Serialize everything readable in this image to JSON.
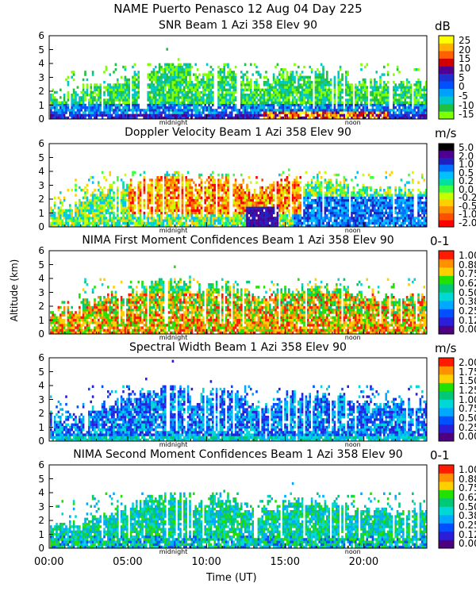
{
  "figure": {
    "title": "NAME Puerto Penasco  12 Aug 04 Day 225",
    "ylabel": "Altitude (km)",
    "xlabel": "Time (UT)",
    "x_ticks": [
      "00:00",
      "05:00",
      "10:00",
      "15:00",
      "20:00"
    ],
    "y_ticks": [
      "0",
      "1",
      "2",
      "3",
      "4",
      "5",
      "6"
    ],
    "markers": [
      "midnight",
      "noon"
    ]
  },
  "colors": {
    "seq10": [
      "#4d0080",
      "#2a1ed8",
      "#0050ff",
      "#00a8ff",
      "#00d8d8",
      "#00c878",
      "#22e000",
      "#ffd000",
      "#ff9000",
      "#ff1a00"
    ],
    "snr": [
      "#80ff00",
      "#20c040",
      "#00c8c8",
      "#00a0ff",
      "#0050ff",
      "#2030d0",
      "#500090",
      "#d00000",
      "#ff6000",
      "#ffb000",
      "#ffff00"
    ],
    "doppler": [
      "#ff0000",
      "#ff5000",
      "#ff9000",
      "#ffd000",
      "#c8ff00",
      "#40ff40",
      "#00e0a0",
      "#00c0ff",
      "#0070ff",
      "#2020c0",
      "#500090",
      "#000000"
    ]
  },
  "chart_data": [
    {
      "type": "heatmap",
      "title": "SNR Beam 1 Azi 358 Elev 90",
      "unit": "dB",
      "xlim": [
        0,
        24
      ],
      "ylim": [
        0,
        6
      ],
      "colorbar_labels": [
        "-15",
        "-10",
        "-5",
        "0",
        "5",
        "10",
        "15",
        "20",
        "25"
      ],
      "colorbar_colors": [
        "#80ff00",
        "#20c040",
        "#00c8c8",
        "#00a0ff",
        "#0050ff",
        "#2030d0",
        "#500090",
        "#d00000",
        "#ff6000",
        "#ffb000",
        "#ffff00"
      ],
      "profile": "snr"
    },
    {
      "type": "heatmap",
      "title": "Doppler Velocity Beam 1 Azi 358 Elev 90",
      "unit": "m/s",
      "xlim": [
        0,
        24
      ],
      "ylim": [
        0,
        6
      ],
      "colorbar_labels": [
        "-2.0",
        "-1.0",
        "-0.5",
        "-0.2",
        "0.0",
        "0.2",
        "0.5",
        "1.0",
        "2.0",
        "5.0"
      ],
      "colorbar_colors": [
        "#ff0000",
        "#ff5000",
        "#ff9000",
        "#ffd000",
        "#c8ff00",
        "#40ff40",
        "#00e0a0",
        "#00c0ff",
        "#0070ff",
        "#2020c0",
        "#500090",
        "#000000"
      ],
      "profile": "doppler"
    },
    {
      "type": "heatmap",
      "title": "NIMA First Moment Confidences Beam 1 Azi 358 Elev 90",
      "unit": "0-1",
      "xlim": [
        0,
        24
      ],
      "ylim": [
        0,
        6
      ],
      "colorbar_labels": [
        "0.00",
        "0.12",
        "0.25",
        "0.38",
        "0.50",
        "0.62",
        "0.75",
        "0.88",
        "1.00"
      ],
      "colorbar_colors": [
        "#4d0080",
        "#2a1ed8",
        "#0050ff",
        "#00a8ff",
        "#00d8d8",
        "#00c878",
        "#22e000",
        "#ffd000",
        "#ff9000",
        "#ff1a00"
      ],
      "profile": "conf1"
    },
    {
      "type": "heatmap",
      "title": "Spectral Width Beam 1 Azi 358 Elev 90",
      "unit": "m/s",
      "xlim": [
        0,
        24
      ],
      "ylim": [
        0,
        6
      ],
      "colorbar_labels": [
        "0.00",
        "0.25",
        "0.50",
        "0.75",
        "1.00",
        "1.25",
        "1.50",
        "1.75",
        "2.00"
      ],
      "colorbar_colors": [
        "#4d0080",
        "#2a1ed8",
        "#0050ff",
        "#00a8ff",
        "#00d8d8",
        "#00c878",
        "#22e000",
        "#ffd000",
        "#ff9000",
        "#ff1a00"
      ],
      "profile": "width"
    },
    {
      "type": "heatmap",
      "title": "NIMA Second Moment Confidences Beam 1 Azi 358 Elev 90",
      "unit": "0-1",
      "xlim": [
        0,
        24
      ],
      "ylim": [
        0,
        6
      ],
      "colorbar_labels": [
        "0.00",
        "0.12",
        "0.25",
        "0.38",
        "0.50",
        "0.62",
        "0.75",
        "0.88",
        "1.00"
      ],
      "colorbar_colors": [
        "#4d0080",
        "#2a1ed8",
        "#0050ff",
        "#00a8ff",
        "#00d8d8",
        "#00c878",
        "#22e000",
        "#ffd000",
        "#ff9000",
        "#ff1a00"
      ],
      "profile": "conf2"
    }
  ]
}
